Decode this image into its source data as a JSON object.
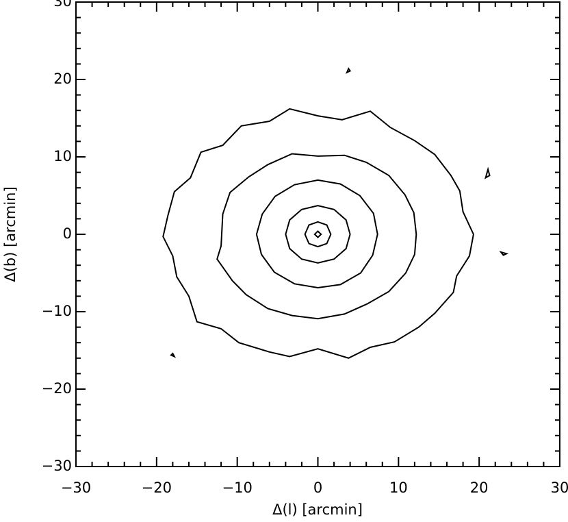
{
  "chart_data": {
    "type": "contour",
    "xlabel": "Δ(l) [arcmin]",
    "ylabel": "Δ(b) [arcmin]",
    "color": "#000000",
    "xlim": [
      -30,
      30
    ],
    "ylim": [
      -30,
      30
    ],
    "xticks": [
      {
        "value": -30,
        "label": "−30"
      },
      {
        "value": -20,
        "label": "−20"
      },
      {
        "value": -10,
        "label": "−10"
      },
      0,
      10,
      20,
      30
    ],
    "yticks": [
      {
        "value": -30,
        "label": "−30"
      },
      {
        "value": -20,
        "label": "−20"
      },
      {
        "value": -10,
        "label": "−10"
      },
      0,
      10,
      20,
      30
    ],
    "xminorticks": [
      -28,
      -26,
      -24,
      -22,
      -18,
      -16,
      -14,
      -12,
      -8,
      -6,
      -4,
      -2,
      2,
      4,
      6,
      8,
      12,
      14,
      16,
      18,
      22,
      24,
      26,
      28
    ],
    "yminorticks": [
      -28,
      -26,
      -24,
      -22,
      -18,
      -16,
      -14,
      -12,
      -8,
      -6,
      -4,
      -2,
      2,
      4,
      6,
      8,
      12,
      14,
      16,
      18,
      22,
      24,
      26,
      28
    ],
    "contours": [
      {
        "x": [
          0.4,
          0,
          -0.4,
          0
        ],
        "y": [
          0,
          0.4,
          0,
          -0.4
        ]
      },
      {
        "x": [
          1.6,
          1.1,
          0,
          -1.1,
          -1.6,
          -1.1,
          0,
          1.1
        ],
        "y": [
          0,
          1.2,
          1.6,
          1.2,
          0,
          -1.2,
          -1.6,
          -1.2
        ]
      },
      {
        "x": [
          4,
          3.5,
          2,
          0,
          -2,
          -3.5,
          -4,
          -3.5,
          -2,
          0,
          2,
          3.5
        ],
        "y": [
          0,
          1.85,
          3.2,
          3.7,
          3.2,
          1.85,
          0,
          -1.85,
          -3.2,
          -3.7,
          -3.2,
          -1.85
        ]
      },
      {
        "x": [
          7.4,
          6.9,
          5.2,
          2.8,
          0,
          -2.9,
          -5.3,
          -6.9,
          -7.6,
          -7.0,
          -5.4,
          -2.9,
          0,
          2.8,
          5.3,
          6.8
        ],
        "y": [
          0,
          2.7,
          5.0,
          6.5,
          7.0,
          6.4,
          4.9,
          2.6,
          0,
          -2.6,
          -4.9,
          -6.4,
          -6.9,
          -6.5,
          -5.0,
          -2.7
        ]
      },
      {
        "x": [
          12.2,
          11.9,
          10.8,
          8.8,
          6.0,
          3.3,
          0,
          -3.2,
          -6.2,
          -8.6,
          -10.9,
          -11.8,
          -12.0,
          -12.5,
          -10.6,
          -8.9,
          -6.2,
          -3.2,
          0,
          3.3,
          6.1,
          8.8,
          10.9,
          12.0
        ],
        "y": [
          0,
          2.8,
          5.1,
          7.6,
          9.3,
          10.2,
          10.1,
          10.4,
          9.0,
          7.4,
          5.4,
          2.6,
          -1.5,
          -3.2,
          -6.0,
          -7.8,
          -9.6,
          -10.5,
          -10.9,
          -10.3,
          -9.0,
          -7.4,
          -5.0,
          -2.6
        ]
      },
      {
        "x": [
          19.3,
          18.0,
          17.6,
          16.5,
          14.5,
          12.0,
          9.0,
          6.5,
          3.0,
          0,
          -3.5,
          -6.0,
          -9.5,
          -11.8,
          -14.5,
          -15.8,
          -17.8,
          -18.6,
          -19.2,
          -18.0,
          -17.5,
          -16.0,
          -15.0,
          -12.0,
          -9.8,
          -6.0,
          -3.5,
          0,
          3.8,
          6.5,
          9.5,
          12.5,
          14.5,
          16.8,
          17.2,
          18.8
        ],
        "y": [
          0,
          2.9,
          5.6,
          7.6,
          10.3,
          12.1,
          13.8,
          15.9,
          14.8,
          15.3,
          16.2,
          14.6,
          14.0,
          11.5,
          10.6,
          7.3,
          5.5,
          2.4,
          -0.3,
          -2.8,
          -5.5,
          -8.0,
          -11.3,
          -12.2,
          -14.0,
          -15.2,
          -15.8,
          -14.8,
          -16.0,
          -14.6,
          -13.9,
          -12.0,
          -10.2,
          -7.5,
          -5.4,
          -2.8
        ]
      },
      {
        "x": [
          3.6,
          4.0,
          3.8
        ],
        "y": [
          20.9,
          21.1,
          21.4
        ]
      },
      {
        "x": [
          22.7,
          23.4,
          23.0
        ],
        "y": [
          -2.3,
          -2.5,
          -2.7
        ]
      },
      {
        "x": [
          20.8,
          21.3,
          21.1
        ],
        "y": [
          7.3,
          7.6,
          8.4
        ]
      },
      {
        "x": [
          -18.2,
          -17.8,
          -18.0
        ],
        "y": [
          -15.6,
          -15.8,
          -15.4
        ]
      }
    ]
  }
}
